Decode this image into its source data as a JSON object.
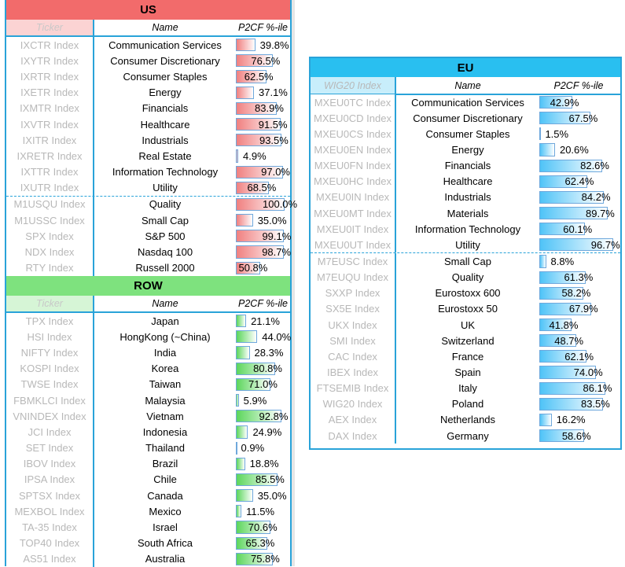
{
  "us": {
    "title": "US",
    "col_ticker": "Ticker",
    "col_name": "Name",
    "col_pct": "P2CF %-ile",
    "colors": {
      "header": "#f26b6b",
      "subheader_ticker": "#fbd3d3",
      "bar": "#f08080"
    },
    "rows": [
      {
        "ticker": "IXCTR Index",
        "name": "Communication Services",
        "value": 39.8,
        "label": "39.8%"
      },
      {
        "ticker": "IXYTR Index",
        "name": "Consumer Discretionary",
        "value": 76.5,
        "label": "76.5%"
      },
      {
        "ticker": "IXRTR Index",
        "name": "Consumer Staples",
        "value": 62.5,
        "label": "62.5%"
      },
      {
        "ticker": "IXETR Index",
        "name": "Energy",
        "value": 37.1,
        "label": "37.1%"
      },
      {
        "ticker": "IXMTR Index",
        "name": "Financials",
        "value": 83.9,
        "label": "83.9%"
      },
      {
        "ticker": "IXVTR Index",
        "name": "Healthcare",
        "value": 91.5,
        "label": "91.5%"
      },
      {
        "ticker": "IXITR Index",
        "name": "Industrials",
        "value": 93.5,
        "label": "93.5%"
      },
      {
        "ticker": "IXRETR Index",
        "name": "Real Estate",
        "value": 4.9,
        "label": "4.9%"
      },
      {
        "ticker": "IXTTR Index",
        "name": "Information Technology",
        "value": 97.0,
        "label": "97.0%"
      },
      {
        "ticker": "IXUTR Index",
        "name": "Utility",
        "value": 68.5,
        "label": "68.5%"
      },
      {
        "ticker": "M1USQU Index",
        "name": "Quality",
        "value": 100.0,
        "label": "100.0%",
        "sep": true
      },
      {
        "ticker": "M1USSC Index",
        "name": "Small Cap",
        "value": 35.0,
        "label": "35.0%"
      },
      {
        "ticker": "SPX Index",
        "name": "S&P 500",
        "value": 99.1,
        "label": "99.1%"
      },
      {
        "ticker": "NDX Index",
        "name": "Nasdaq 100",
        "value": 98.7,
        "label": "98.7%"
      },
      {
        "ticker": "RTY Index",
        "name": "Russell 2000",
        "value": 50.8,
        "label": "50.8%"
      }
    ]
  },
  "row": {
    "title": "ROW",
    "col_ticker": "Ticker",
    "col_name": "Name",
    "col_pct": "P2CF %-ile",
    "colors": {
      "header": "#7ee27e",
      "subheader_ticker": "#d6f5d6",
      "bar": "#5cd65c"
    },
    "rows": [
      {
        "ticker": "TPX Index",
        "name": "Japan",
        "value": 21.1,
        "label": "21.1%"
      },
      {
        "ticker": "HSI Index",
        "name": "HongKong (~China)",
        "value": 44.0,
        "label": "44.0%"
      },
      {
        "ticker": "NIFTY Index",
        "name": "India",
        "value": 28.3,
        "label": "28.3%"
      },
      {
        "ticker": "KOSPI Index",
        "name": "Korea",
        "value": 80.8,
        "label": "80.8%"
      },
      {
        "ticker": "TWSE Index",
        "name": "Taiwan",
        "value": 71.0,
        "label": "71.0%"
      },
      {
        "ticker": "FBMKLCI Index",
        "name": "Malaysia",
        "value": 5.9,
        "label": "5.9%"
      },
      {
        "ticker": "VNINDEX Index",
        "name": "Vietnam",
        "value": 92.8,
        "label": "92.8%"
      },
      {
        "ticker": "JCI Index",
        "name": "Indonesia",
        "value": 24.9,
        "label": "24.9%"
      },
      {
        "ticker": "SET Index",
        "name": "Thailand",
        "value": 0.9,
        "label": "0.9%"
      },
      {
        "ticker": "IBOV Index",
        "name": "Brazil",
        "value": 18.8,
        "label": "18.8%"
      },
      {
        "ticker": "IPSA Index",
        "name": "Chile",
        "value": 85.5,
        "label": "85.5%"
      },
      {
        "ticker": "SPTSX Index",
        "name": "Canada",
        "value": 35.0,
        "label": "35.0%"
      },
      {
        "ticker": "MEXBOL Index",
        "name": "Mexico",
        "value": 11.5,
        "label": "11.5%"
      },
      {
        "ticker": "TA-35 Index",
        "name": "Israel",
        "value": 70.6,
        "label": "70.6%"
      },
      {
        "ticker": "TOP40 Index",
        "name": "South Africa",
        "value": 65.3,
        "label": "65.3%"
      },
      {
        "ticker": "AS51 Index",
        "name": "Australia",
        "value": 75.8,
        "label": "75.8%"
      }
    ]
  },
  "eu": {
    "title": "EU",
    "col_ticker": "WIG20 Index",
    "col_name": "Name",
    "col_pct": "P2CF %-ile",
    "colors": {
      "header": "#29bff0",
      "subheader_ticker": "#c8eefb",
      "bar": "#4fc3f7"
    },
    "rows": [
      {
        "ticker": "MXEU0TC Index",
        "name": "Communication Services",
        "value": 42.9,
        "label": "42.9%"
      },
      {
        "ticker": "MXEU0CD Index",
        "name": "Consumer Discretionary",
        "value": 67.5,
        "label": "67.5%"
      },
      {
        "ticker": "MXEU0CS Index",
        "name": "Consumer Staples",
        "value": 1.5,
        "label": "1.5%"
      },
      {
        "ticker": "MXEU0EN Index",
        "name": "Energy",
        "value": 20.6,
        "label": "20.6%"
      },
      {
        "ticker": "MXEU0FN Index",
        "name": "Financials",
        "value": 82.6,
        "label": "82.6%"
      },
      {
        "ticker": "MXEU0HC Index",
        "name": "Healthcare",
        "value": 62.4,
        "label": "62.4%"
      },
      {
        "ticker": "MXEU0IN Index",
        "name": "Industrials",
        "value": 84.2,
        "label": "84.2%"
      },
      {
        "ticker": "MXEU0MT Index",
        "name": "Materials",
        "value": 89.7,
        "label": "89.7%"
      },
      {
        "ticker": "MXEU0IT Index",
        "name": "Information Technology",
        "value": 60.1,
        "label": "60.1%"
      },
      {
        "ticker": "MXEU0UT Index",
        "name": "Utility",
        "value": 96.7,
        "label": "96.7%"
      },
      {
        "ticker": "M7EUSC Index",
        "name": "Small Cap",
        "value": 8.8,
        "label": "8.8%",
        "sep": true
      },
      {
        "ticker": "M7EUQU Index",
        "name": "Quality",
        "value": 61.3,
        "label": "61.3%"
      },
      {
        "ticker": "SXXP Index",
        "name": "Eurostoxx 600",
        "value": 58.2,
        "label": "58.2%"
      },
      {
        "ticker": "SX5E Index",
        "name": "Eurostoxx 50",
        "value": 67.9,
        "label": "67.9%"
      },
      {
        "ticker": "UKX Index",
        "name": "UK",
        "value": 41.8,
        "label": "41.8%"
      },
      {
        "ticker": "SMI Index",
        "name": "Switzerland",
        "value": 48.7,
        "label": "48.7%"
      },
      {
        "ticker": "CAC Index",
        "name": "France",
        "value": 62.1,
        "label": "62.1%"
      },
      {
        "ticker": "IBEX Index",
        "name": "Spain",
        "value": 74.0,
        "label": "74.0%"
      },
      {
        "ticker": "FTSEMIB Index",
        "name": "Italy",
        "value": 86.1,
        "label": "86.1%"
      },
      {
        "ticker": "WIG20 Index",
        "name": "Poland",
        "value": 83.5,
        "label": "83.5%"
      },
      {
        "ticker": "AEX Index",
        "name": "Netherlands",
        "value": 16.2,
        "label": "16.2%"
      },
      {
        "ticker": "DAX Index",
        "name": "Germany",
        "value": 58.6,
        "label": "58.6%"
      }
    ]
  }
}
